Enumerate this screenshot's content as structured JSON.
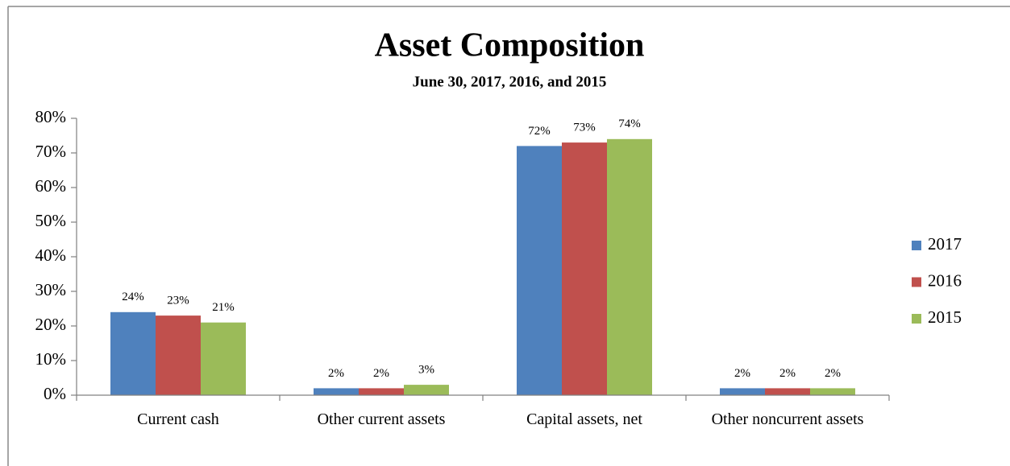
{
  "chart_data": {
    "type": "bar",
    "title": "Asset Composition",
    "subtitle": "June 30, 2017, 2016, and 2015",
    "categories": [
      "Current cash",
      "Other current assets",
      "Capital assets, net",
      "Other noncurrent assets"
    ],
    "series": [
      {
        "name": "2017",
        "color": "#4f81bd",
        "values": [
          24,
          2,
          72,
          2
        ],
        "value_labels": [
          "24%",
          "2%",
          "72%",
          "2%"
        ]
      },
      {
        "name": "2016",
        "color": "#c0504d",
        "values": [
          23,
          2,
          73,
          2
        ],
        "value_labels": [
          "23%",
          "2%",
          "73%",
          "2%"
        ]
      },
      {
        "name": "2015",
        "color": "#9bbb59",
        "values": [
          21,
          3,
          74,
          2
        ],
        "value_labels": [
          "21%",
          "3%",
          "74%",
          "2%"
        ]
      }
    ],
    "ylim": [
      0,
      80
    ],
    "yticks": [
      {
        "value": 0,
        "label": "0%"
      },
      {
        "value": 10,
        "label": "10%"
      },
      {
        "value": 20,
        "label": "20%"
      },
      {
        "value": 30,
        "label": "30%"
      },
      {
        "value": 40,
        "label": "40%"
      },
      {
        "value": 50,
        "label": "50%"
      },
      {
        "value": 60,
        "label": "60%"
      },
      {
        "value": 70,
        "label": "70%"
      },
      {
        "value": 80,
        "label": "80%"
      }
    ],
    "legend": "right"
  }
}
